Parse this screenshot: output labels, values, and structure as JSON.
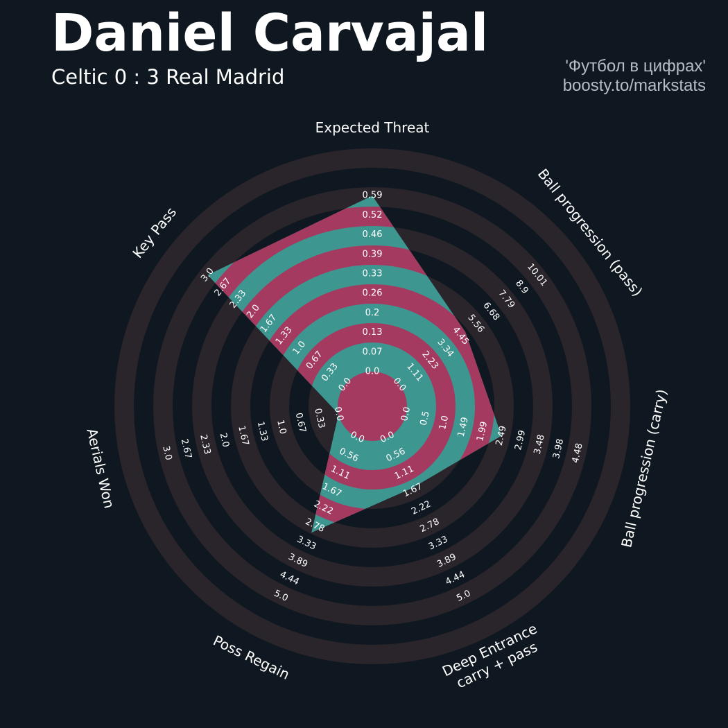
{
  "header": {
    "title": "Daniel Carvajal",
    "subtitle": "Celtic 0 : 3 Real Madrid",
    "credit_line1": "'Футбол в цифрах'",
    "credit_line2": "boosty.to/markstats"
  },
  "colors": {
    "background": "#0f1820",
    "ring_dark": "#2a242b",
    "ring_magenta": "#a53a60",
    "polygon": "#3d9690",
    "text": "#ffffff"
  },
  "chart_data": {
    "type": "radar",
    "title": "Daniel Carvajal",
    "subtitle": "Celtic 0 : 3 Real Madrid",
    "params": [
      {
        "label": [
          "Expected Threat"
        ],
        "min": 0.0,
        "max": 0.59,
        "value": 0.59,
        "ticks": [
          "0.0",
          "0.07",
          "0.13",
          "0.2",
          "0.26",
          "0.33",
          "0.39",
          "0.46",
          "0.52",
          "0.59"
        ]
      },
      {
        "label": [
          "Ball progression (pass)"
        ],
        "min": 0.0,
        "max": 10.01,
        "value": 4.8,
        "ticks": [
          "0.0",
          "1.11",
          "2.23",
          "3.34",
          "4.45",
          "5.56",
          "6.68",
          "7.79",
          "8.9",
          "10.01"
        ]
      },
      {
        "label": [
          "Ball progression (carry)"
        ],
        "min": 0.0,
        "max": 4.48,
        "value": 2.49,
        "ticks": [
          "0.0",
          "0.5",
          "1.0",
          "1.49",
          "1.99",
          "2.49",
          "2.99",
          "3.48",
          "3.98",
          "4.48"
        ]
      },
      {
        "label": [
          "Deep Entrance",
          "carry + pass"
        ],
        "min": 0.0,
        "max": 5.0,
        "value": 1.6,
        "ticks": [
          "0.0",
          "0.56",
          "1.11",
          "1.67",
          "2.22",
          "2.78",
          "3.33",
          "3.89",
          "4.44",
          "5.0"
        ]
      },
      {
        "label": [
          "Poss Regain"
        ],
        "min": 0.0,
        "max": 5.0,
        "value": 3.0,
        "ticks": [
          "0.0",
          "0.56",
          "1.11",
          "1.67",
          "2.22",
          "2.78",
          "3.33",
          "3.89",
          "4.44",
          "5.0"
        ]
      },
      {
        "label": [
          "Aerials Won"
        ],
        "min": 0.0,
        "max": 3.0,
        "value": 0.0,
        "ticks": [
          "0.0",
          "0.33",
          "0.67",
          "1.0",
          "1.33",
          "1.67",
          "2.0",
          "2.33",
          "2.67",
          "3.0"
        ]
      },
      {
        "label": [
          "Key Pass"
        ],
        "min": 0.0,
        "max": 3.0,
        "value": 3.0,
        "ticks": [
          "0.0",
          "0.33",
          "0.67",
          "1.0",
          "1.33",
          "1.67",
          "2.0",
          "2.33",
          "2.67",
          "3.0"
        ]
      }
    ],
    "grid": false,
    "legend": "none"
  }
}
